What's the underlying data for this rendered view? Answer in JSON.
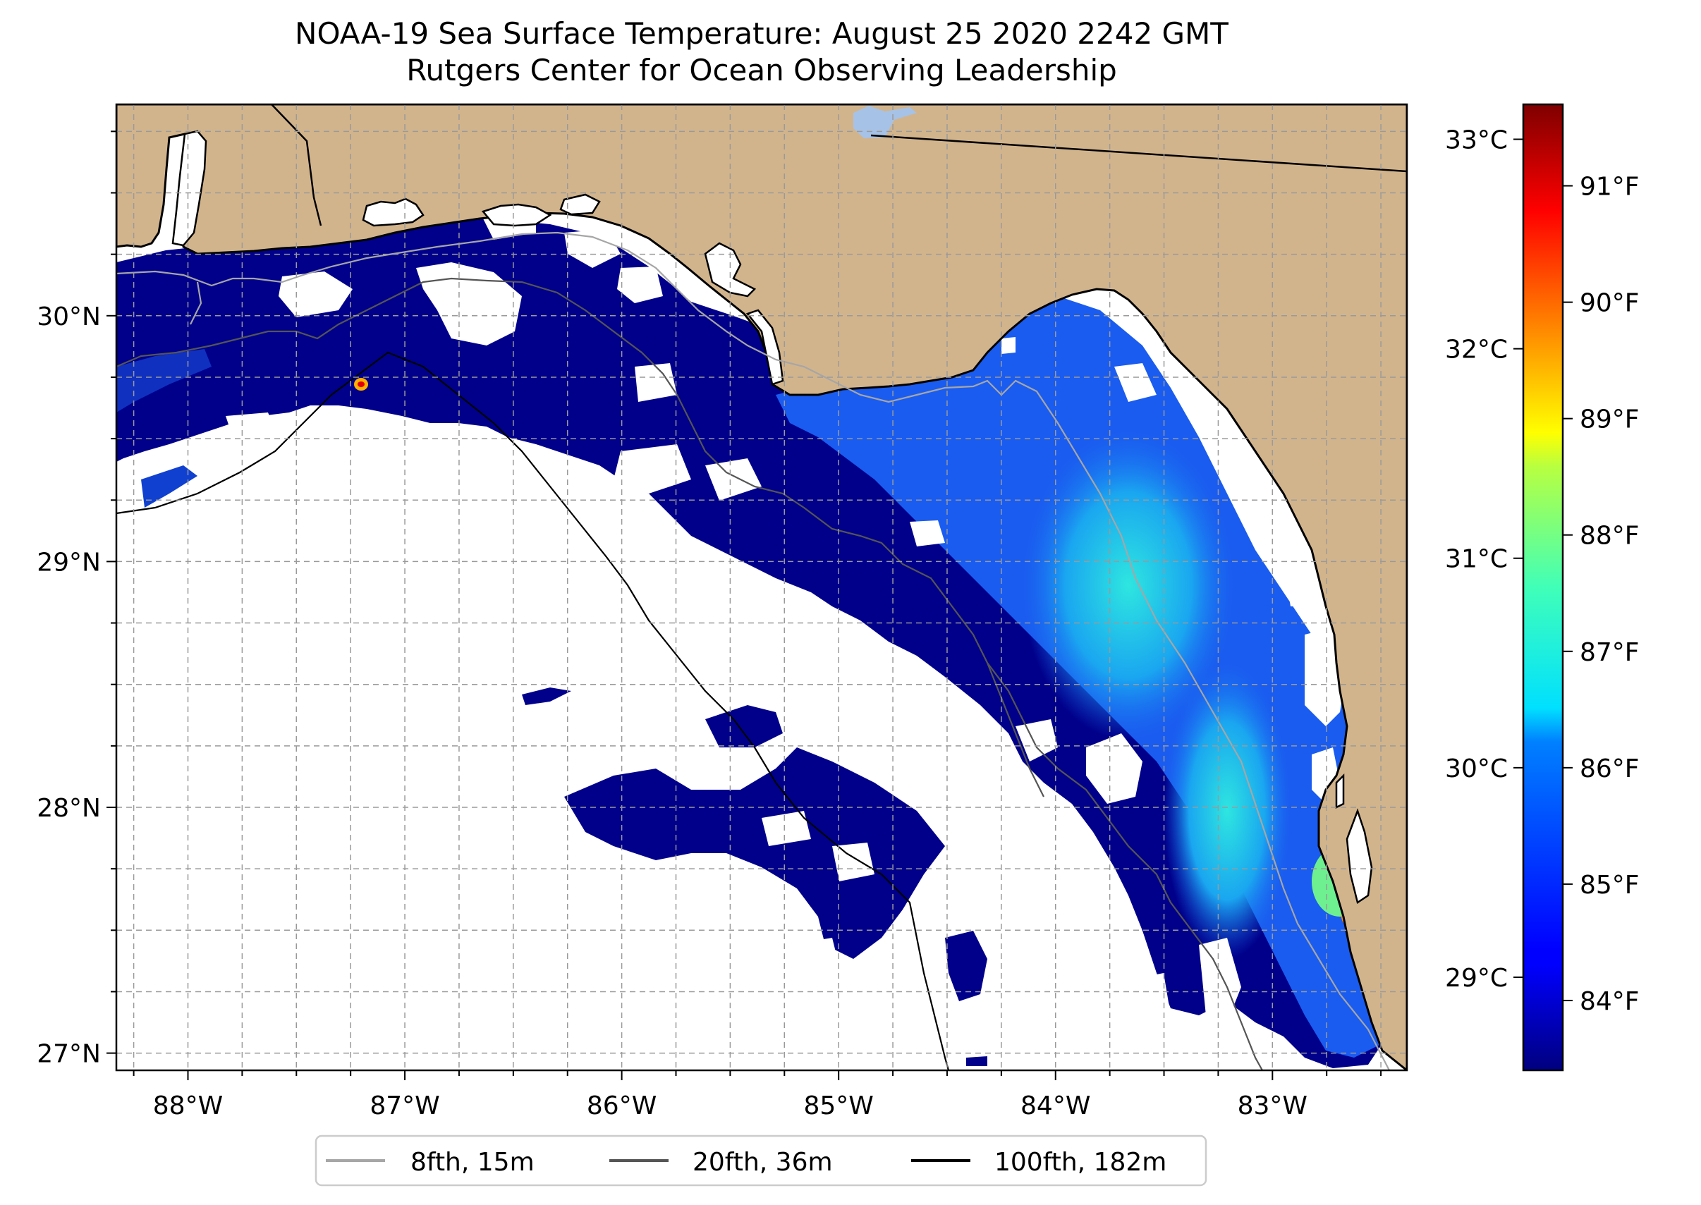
{
  "title": "NOAA-19 Sea Surface Temperature: August 25 2020 2242 GMT",
  "subtitle": "Rutgers Center for Ocean Observing Leadership",
  "map": {
    "lon_range": [
      -88.33,
      -82.38
    ],
    "lat_range": [
      26.93,
      30.86
    ],
    "x_ticks": [
      {
        "value": -88,
        "label": "88°W"
      },
      {
        "value": -87,
        "label": "87°W"
      },
      {
        "value": -86,
        "label": "86°W"
      },
      {
        "value": -85,
        "label": "85°W"
      },
      {
        "value": -84,
        "label": "84°W"
      },
      {
        "value": -83,
        "label": "83°W"
      }
    ],
    "y_ticks": [
      {
        "value": 27,
        "label": "27°N"
      },
      {
        "value": 28,
        "label": "28°N"
      },
      {
        "value": 29,
        "label": "29°N"
      },
      {
        "value": 30,
        "label": "30°N"
      }
    ],
    "gridlines": true,
    "land_color": "#d2b48c",
    "lake_color": "#a6c2e6"
  },
  "colorbar": {
    "colormap": "jet",
    "celsius_ticks": [
      {
        "value": 29,
        "label": "29°C"
      },
      {
        "value": 30,
        "label": "30°C"
      },
      {
        "value": 31,
        "label": "31°C"
      },
      {
        "value": 32,
        "label": "32°C"
      },
      {
        "value": 33,
        "label": "33°C"
      }
    ],
    "fahrenheit_ticks": [
      {
        "value": 84,
        "label": "84°F"
      },
      {
        "value": 85,
        "label": "85°F"
      },
      {
        "value": 86,
        "label": "86°F"
      },
      {
        "value": 87,
        "label": "87°F"
      },
      {
        "value": 88,
        "label": "88°F"
      },
      {
        "value": 89,
        "label": "89°F"
      },
      {
        "value": 90,
        "label": "90°F"
      },
      {
        "value": 91,
        "label": "91°F"
      }
    ],
    "range_f": [
      83.4,
      91.7
    ]
  },
  "legend": {
    "placement": "bottom",
    "entries": [
      {
        "label": "8fth, 15m",
        "color": "#a6a6a6"
      },
      {
        "label": "20fth, 36m",
        "color": "#555555"
      },
      {
        "label": "100fth, 182m",
        "color": "#000000"
      }
    ]
  }
}
